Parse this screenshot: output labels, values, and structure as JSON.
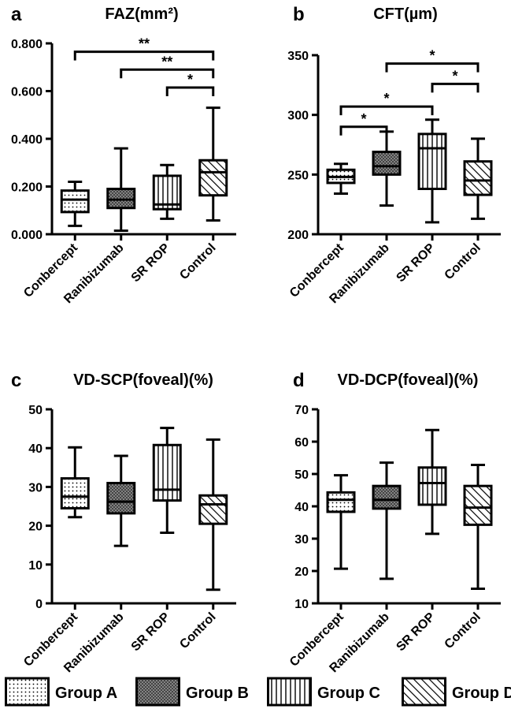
{
  "figure": {
    "legend": [
      {
        "group": "Group A",
        "pattern": "dots"
      },
      {
        "group": "Group B",
        "pattern": "crosshatch"
      },
      {
        "group": "Group C",
        "pattern": "vertical"
      },
      {
        "group": "Group D",
        "pattern": "diagonal"
      }
    ]
  },
  "chart_data": [
    {
      "panel": "a",
      "type": "box",
      "title": "FAZ(mm²)",
      "categories": [
        "Conbercept",
        "Ranibizumab",
        "SR ROP",
        "Control"
      ],
      "ylim": [
        0,
        0.8
      ],
      "yticks": [
        0.0,
        0.2,
        0.4,
        0.6,
        0.8
      ],
      "ytick_labels": [
        "0.000",
        "0.200",
        "0.400",
        "0.600",
        "0.800"
      ],
      "boxes": [
        {
          "min": 0.035,
          "q1": 0.093,
          "median": 0.145,
          "q3": 0.183,
          "max": 0.22,
          "pattern": "dots"
        },
        {
          "min": 0.015,
          "q1": 0.11,
          "median": 0.145,
          "q3": 0.19,
          "max": 0.36,
          "pattern": "crosshatch"
        },
        {
          "min": 0.065,
          "q1": 0.105,
          "median": 0.125,
          "q3": 0.245,
          "max": 0.29,
          "pattern": "vertical"
        },
        {
          "min": 0.058,
          "q1": 0.163,
          "median": 0.26,
          "q3": 0.31,
          "max": 0.53,
          "pattern": "diagonal"
        }
      ],
      "significance": [
        {
          "from": 0,
          "to": 3,
          "y": 0.765,
          "label": "**"
        },
        {
          "from": 1,
          "to": 3,
          "y": 0.69,
          "label": "**"
        },
        {
          "from": 2,
          "to": 3,
          "y": 0.615,
          "label": "*"
        }
      ]
    },
    {
      "panel": "b",
      "type": "box",
      "title": "CFT(µm)",
      "categories": [
        "Conbercept",
        "Ranibizumab",
        "SR ROP",
        "Control"
      ],
      "ylim": [
        200,
        350
      ],
      "yticks": [
        200,
        250,
        300,
        350
      ],
      "ytick_labels": [
        "200",
        "250",
        "300",
        "350"
      ],
      "boxes": [
        {
          "min": 234,
          "q1": 243,
          "median": 248,
          "q3": 254,
          "max": 259,
          "pattern": "dots"
        },
        {
          "min": 224,
          "q1": 250,
          "median": 257,
          "q3": 269,
          "max": 286,
          "pattern": "crosshatch"
        },
        {
          "min": 210,
          "q1": 238,
          "median": 272,
          "q3": 284,
          "max": 296,
          "pattern": "vertical"
        },
        {
          "min": 213,
          "q1": 233,
          "median": 245,
          "q3": 261,
          "max": 280,
          "pattern": "diagonal"
        }
      ],
      "significance": [
        {
          "from": 1,
          "to": 3,
          "y": 343,
          "label": "*"
        },
        {
          "from": 2,
          "to": 3,
          "y": 326,
          "label": "*"
        },
        {
          "from": 0,
          "to": 2,
          "y": 307,
          "label": "*"
        },
        {
          "from": 0,
          "to": 1,
          "y": 290,
          "label": "*"
        }
      ]
    },
    {
      "panel": "c",
      "type": "box",
      "title": "VD-SCP(foveal)(%)",
      "categories": [
        "Conbercept",
        "Ranibizumab",
        "SR ROP",
        "Control"
      ],
      "ylim": [
        0,
        50
      ],
      "yticks": [
        0,
        10,
        20,
        30,
        40,
        50
      ],
      "ytick_labels": [
        "0",
        "10",
        "20",
        "30",
        "40",
        "50"
      ],
      "boxes": [
        {
          "min": 22.2,
          "q1": 24.5,
          "median": 27.5,
          "q3": 32.2,
          "max": 40.2,
          "pattern": "dots"
        },
        {
          "min": 14.8,
          "q1": 23.2,
          "median": 26.2,
          "q3": 31.0,
          "max": 38.0,
          "pattern": "crosshatch"
        },
        {
          "min": 18.2,
          "q1": 26.5,
          "median": 29.3,
          "q3": 40.8,
          "max": 45.2,
          "pattern": "vertical"
        },
        {
          "min": 3.5,
          "q1": 20.5,
          "median": 25.5,
          "q3": 27.8,
          "max": 42.2,
          "pattern": "diagonal"
        }
      ],
      "significance": []
    },
    {
      "panel": "d",
      "type": "box",
      "title": "VD-DCP(foveal)(%)",
      "categories": [
        "Conbercept",
        "Ranibizumab",
        "SR ROP",
        "Control"
      ],
      "ylim": [
        10,
        70
      ],
      "yticks": [
        10,
        20,
        30,
        40,
        50,
        60,
        70
      ],
      "ytick_labels": [
        "10",
        "20",
        "30",
        "40",
        "50",
        "60",
        "70"
      ],
      "boxes": [
        {
          "min": 20.7,
          "q1": 38.3,
          "median": 42.0,
          "q3": 44.3,
          "max": 49.6,
          "pattern": "dots"
        },
        {
          "min": 17.6,
          "q1": 39.3,
          "median": 42.0,
          "q3": 46.3,
          "max": 53.5,
          "pattern": "crosshatch"
        },
        {
          "min": 31.5,
          "q1": 40.5,
          "median": 47.2,
          "q3": 52.0,
          "max": 63.6,
          "pattern": "vertical"
        },
        {
          "min": 14.5,
          "q1": 34.3,
          "median": 39.6,
          "q3": 46.3,
          "max": 52.8,
          "pattern": "diagonal"
        }
      ],
      "significance": []
    }
  ]
}
